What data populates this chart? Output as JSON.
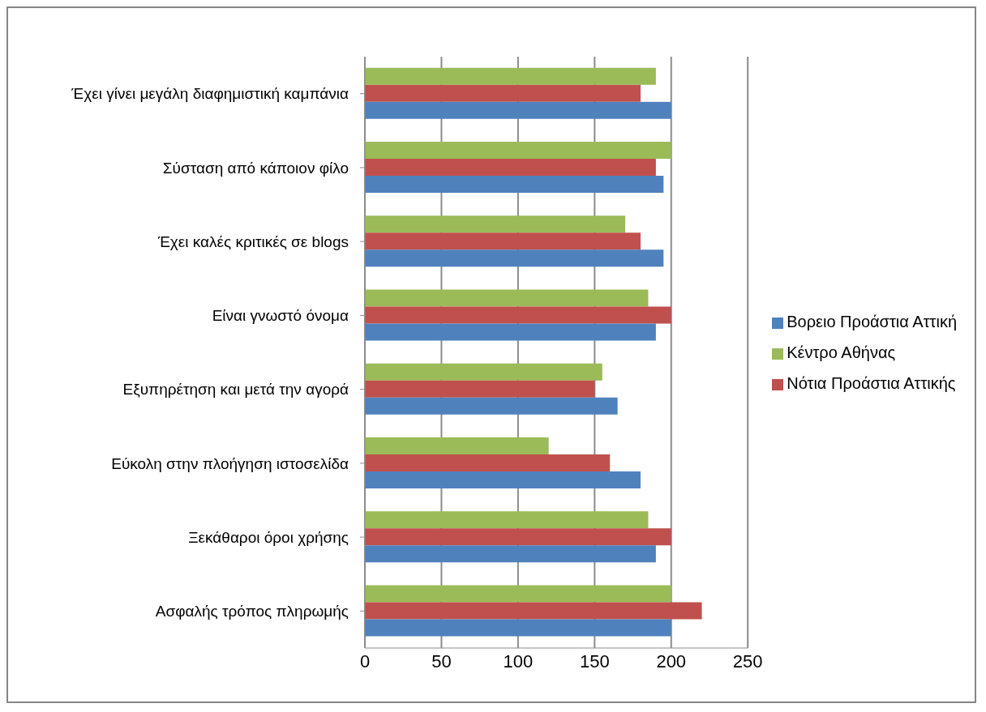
{
  "chart_data": {
    "type": "bar",
    "orientation": "horizontal",
    "categories": [
      "Έχει γίνει μεγάλη διαφημιστική καμπάνια",
      "Σύσταση από κάποιον φίλο",
      "Έχει καλές κριτικές σε blogs",
      "Είναι γνωστό όνομα",
      "Εξυπηρέτηση και μετά την αγορά",
      "Εύκολη στην πλοήγηση ιστοσελίδα",
      "Ξεκάθαροι όροι χρήσης",
      "Ασφαλής τρόπος πληρωμής"
    ],
    "series": [
      {
        "name": "Κέντρο Αθήνας",
        "color": "#9bbb59",
        "values": [
          190,
          200,
          170,
          185,
          155,
          120,
          185,
          200
        ]
      },
      {
        "name": "Νότια Προάστια Αττικής",
        "color": "#c0504d",
        "values": [
          180,
          190,
          180,
          200,
          150,
          160,
          200,
          220
        ]
      },
      {
        "name": "Βορειο Προάστια Αττική",
        "color": "#4f81bd",
        "values": [
          200,
          195,
          195,
          190,
          165,
          180,
          190,
          200
        ]
      }
    ],
    "xlim": [
      0,
      250
    ],
    "xticks": [
      0,
      50,
      100,
      150,
      200,
      250
    ],
    "grid": "x",
    "legend": "right"
  }
}
